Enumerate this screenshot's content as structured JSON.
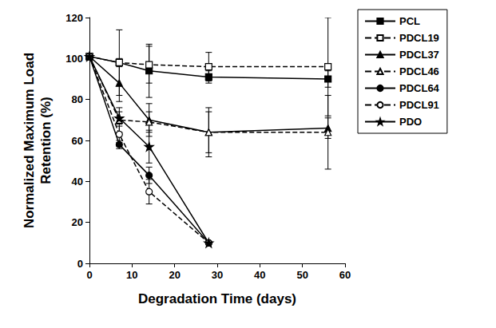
{
  "chart_data": {
    "type": "line",
    "xlabel": "Degradation Time (days)",
    "ylabel": "Normalized Maximum Load\nRetention (%)",
    "xlim": [
      0,
      60
    ],
    "xticks": [
      0,
      10,
      20,
      30,
      40,
      50,
      60
    ],
    "ylim": [
      0,
      120
    ],
    "yticks": [
      0,
      20,
      40,
      60,
      80,
      100,
      120
    ],
    "grid": false,
    "legend": "right",
    "series": [
      {
        "name": "PCL",
        "color": "#000000",
        "marker": "square",
        "line_style": "solid",
        "x": [
          0,
          7,
          14,
          28,
          56
        ],
        "values": [
          101,
          98,
          94,
          91,
          90
        ],
        "errors": [
          0,
          2,
          13,
          3,
          4
        ]
      },
      {
        "name": "PDCL19",
        "color": "#000000",
        "marker": "square-open",
        "line_style": "dashed",
        "x": [
          0,
          7,
          14,
          28,
          56
        ],
        "values": [
          101,
          98,
          97,
          96,
          96
        ],
        "errors": [
          0,
          16,
          9,
          7,
          24
        ]
      },
      {
        "name": "PDCL37",
        "color": "#000000",
        "marker": "triangle",
        "line_style": "solid",
        "x": [
          0,
          7,
          14,
          28,
          56
        ],
        "values": [
          101,
          88,
          70,
          64,
          66
        ],
        "errors": [
          0,
          9,
          8,
          12,
          5
        ]
      },
      {
        "name": "PDCL46",
        "color": "#000000",
        "marker": "triangle-open",
        "line_style": "dashed",
        "x": [
          0,
          7,
          14,
          28,
          56
        ],
        "values": [
          101,
          70,
          69,
          64,
          64
        ],
        "errors": [
          0,
          6,
          5,
          10,
          18
        ]
      },
      {
        "name": "PDCL64",
        "color": "#000000",
        "marker": "circle",
        "line_style": "solid",
        "x": [
          0,
          7,
          14,
          28
        ],
        "values": [
          101,
          58,
          43,
          10
        ],
        "errors": [
          0,
          2,
          4,
          0
        ]
      },
      {
        "name": "PDCL91",
        "color": "#000000",
        "marker": "circle-open",
        "line_style": "dashed",
        "x": [
          0,
          7,
          14,
          28
        ],
        "values": [
          101,
          63,
          35,
          10
        ],
        "errors": [
          0,
          4,
          6,
          0
        ]
      },
      {
        "name": "PDO",
        "color": "#000000",
        "marker": "star",
        "line_style": "solid",
        "x": [
          0,
          7,
          14,
          28
        ],
        "values": [
          101,
          71,
          57,
          10
        ],
        "errors": [
          0,
          3,
          8,
          0
        ]
      }
    ]
  }
}
